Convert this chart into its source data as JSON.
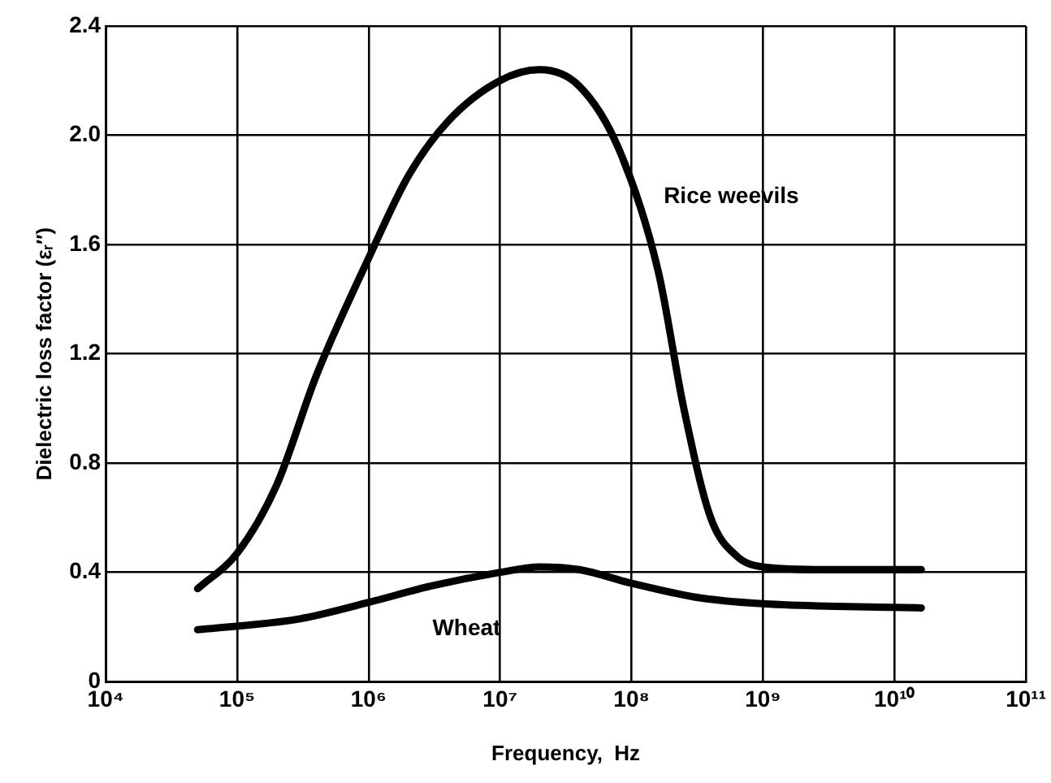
{
  "chart_data": {
    "type": "line",
    "xlabel": "Frequency,  Hz",
    "ylabel": "Dielectric loss factor (εᵣ″)",
    "log": "x",
    "grid": true,
    "legend": false,
    "marker": "none",
    "line_style": "solid",
    "xlim": [
      10000,
      100000000000
    ],
    "xticks": [
      {
        "value": 10000,
        "label": "10⁴"
      },
      {
        "value": 100000,
        "label": "10⁵"
      },
      {
        "value": 1000000,
        "label": "10⁶"
      },
      {
        "value": 10000000,
        "label": "10⁷"
      },
      {
        "value": 100000000,
        "label": "10⁸"
      },
      {
        "value": 1000000000,
        "label": "10⁹"
      },
      {
        "value": 10000000000,
        "label": "10¹⁰"
      },
      {
        "value": 100000000000,
        "label": "10¹¹"
      }
    ],
    "ylim": [
      0,
      2.4
    ],
    "yticks": [
      0,
      {
        "value": 0.4,
        "label": "0.4"
      },
      {
        "value": 0.8,
        "label": "0.8"
      },
      {
        "value": 1.2,
        "label": "1.2"
      },
      {
        "value": 1.6,
        "label": "1.6"
      },
      {
        "value": 2.0,
        "label": "2.0"
      },
      {
        "value": 2.4,
        "label": "2.4"
      }
    ],
    "series": [
      {
        "name": "Rice weevils",
        "color": "#000000",
        "x": [
          50000,
          100000,
          200000,
          400000,
          1000000,
          2000000,
          4000000,
          10000000,
          20000000,
          40000000,
          80000000,
          160000000,
          250000000,
          400000000,
          630000000,
          1000000000,
          3000000000,
          16000000000
        ],
        "values": [
          0.34,
          0.47,
          0.72,
          1.12,
          1.55,
          1.85,
          2.05,
          2.2,
          2.24,
          2.18,
          1.95,
          1.5,
          1.0,
          0.6,
          0.46,
          0.42,
          0.41,
          0.41
        ]
      },
      {
        "name": "Wheat",
        "color": "#000000",
        "x": [
          50000,
          300000,
          1000000,
          3000000,
          10000000,
          20000000,
          40000000,
          100000000,
          300000000,
          1000000000,
          16000000000
        ],
        "values": [
          0.19,
          0.23,
          0.29,
          0.35,
          0.4,
          0.42,
          0.41,
          0.36,
          0.31,
          0.285,
          0.27
        ]
      }
    ]
  }
}
